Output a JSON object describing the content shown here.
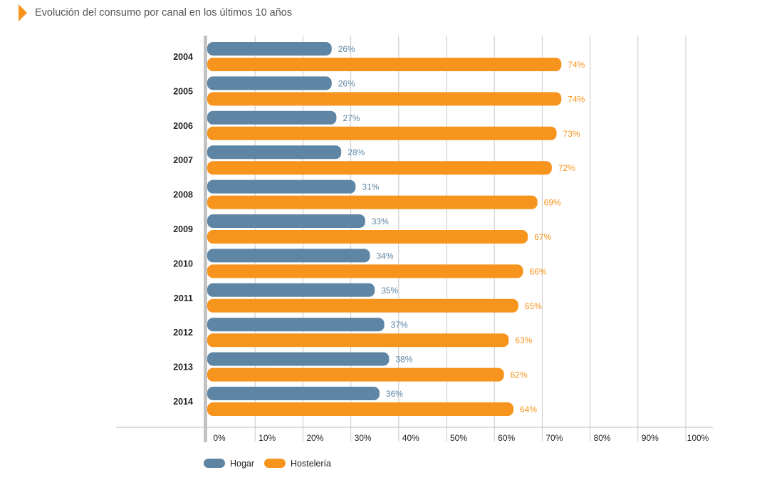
{
  "title": "Evolución del consumo por canal en los últimos 10 años",
  "colors": {
    "hogar": "#5e85a3",
    "hosteleria": "#f7941d",
    "accent": "#f7941d",
    "grid": "#c8c8c8"
  },
  "chart_data": {
    "type": "bar",
    "orientation": "horizontal",
    "title": "Evolución del consumo por canal en los últimos 10 años",
    "categories": [
      "2004",
      "2005",
      "2006",
      "2007",
      "2008",
      "2009",
      "2010",
      "2011",
      "2012",
      "2013",
      "2014"
    ],
    "series": [
      {
        "name": "Hogar",
        "color": "#5e85a3",
        "values": [
          26,
          26,
          27,
          28,
          31,
          33,
          34,
          35,
          37,
          38,
          36
        ],
        "labels": [
          "26%",
          "26%",
          "27%",
          "28%",
          "31%",
          "33%",
          "34%",
          "35%",
          "37%",
          "38%",
          "36%"
        ]
      },
      {
        "name": "Hostelería",
        "color": "#f7941d",
        "values": [
          74,
          74,
          73,
          72,
          69,
          67,
          66,
          65,
          63,
          62,
          64
        ],
        "labels": [
          "74%",
          "74%",
          "73%",
          "72%",
          "69%",
          "67%",
          "66%",
          "65%",
          "63%",
          "62%",
          "64%"
        ]
      }
    ],
    "xlim": [
      0,
      100
    ],
    "xticks": [
      0,
      10,
      20,
      30,
      40,
      50,
      60,
      70,
      80,
      90,
      100
    ],
    "xtick_labels": [
      "0%",
      "10%",
      "20%",
      "30%",
      "40%",
      "50%",
      "60%",
      "70%",
      "80%",
      "90%",
      "100%"
    ],
    "grid": true,
    "legend": {
      "position": "bottom-left",
      "entries": [
        "Hogar",
        "Hostelería"
      ]
    }
  }
}
